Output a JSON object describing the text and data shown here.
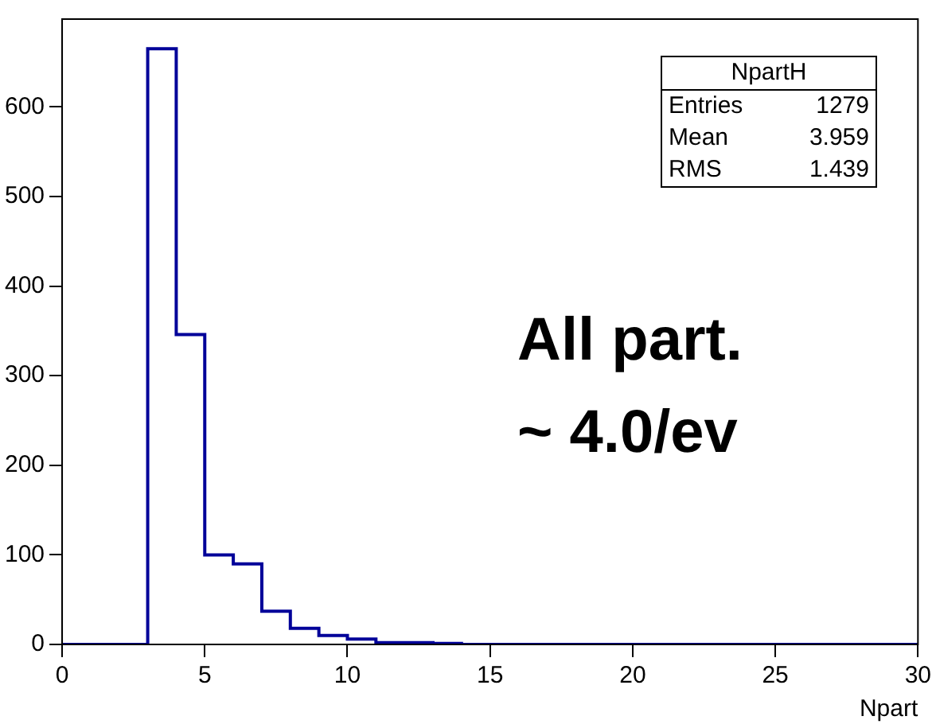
{
  "chart_data": {
    "type": "histogram",
    "xlabel": "Npart",
    "bins": [
      0,
      1,
      2,
      3,
      4,
      5,
      6,
      7,
      8,
      9,
      10,
      11,
      12,
      13,
      14,
      15,
      16,
      17,
      18,
      19,
      20,
      21,
      22,
      23,
      24,
      25,
      26,
      27,
      28,
      29,
      30
    ],
    "values": [
      0,
      0,
      0,
      665,
      346,
      100,
      90,
      37,
      18,
      10,
      6,
      2,
      2,
      1,
      0,
      0,
      0,
      0,
      0,
      0,
      0,
      0,
      0,
      0,
      0,
      0,
      0,
      0,
      0,
      0
    ],
    "color": "#000099",
    "xlim": [
      0,
      30
    ],
    "xticks": [
      0,
      5,
      10,
      15,
      20,
      25,
      30
    ],
    "ylim": [
      0,
      698
    ],
    "yticks": [
      0,
      100,
      200,
      300,
      400,
      500,
      600
    ],
    "grid": false,
    "legend": false,
    "annotations": [
      "NpartH",
      "Entries 1279",
      "Mean 3.959",
      "RMS 1.439",
      "All part.\n~ 4.0/ev"
    ]
  }
}
